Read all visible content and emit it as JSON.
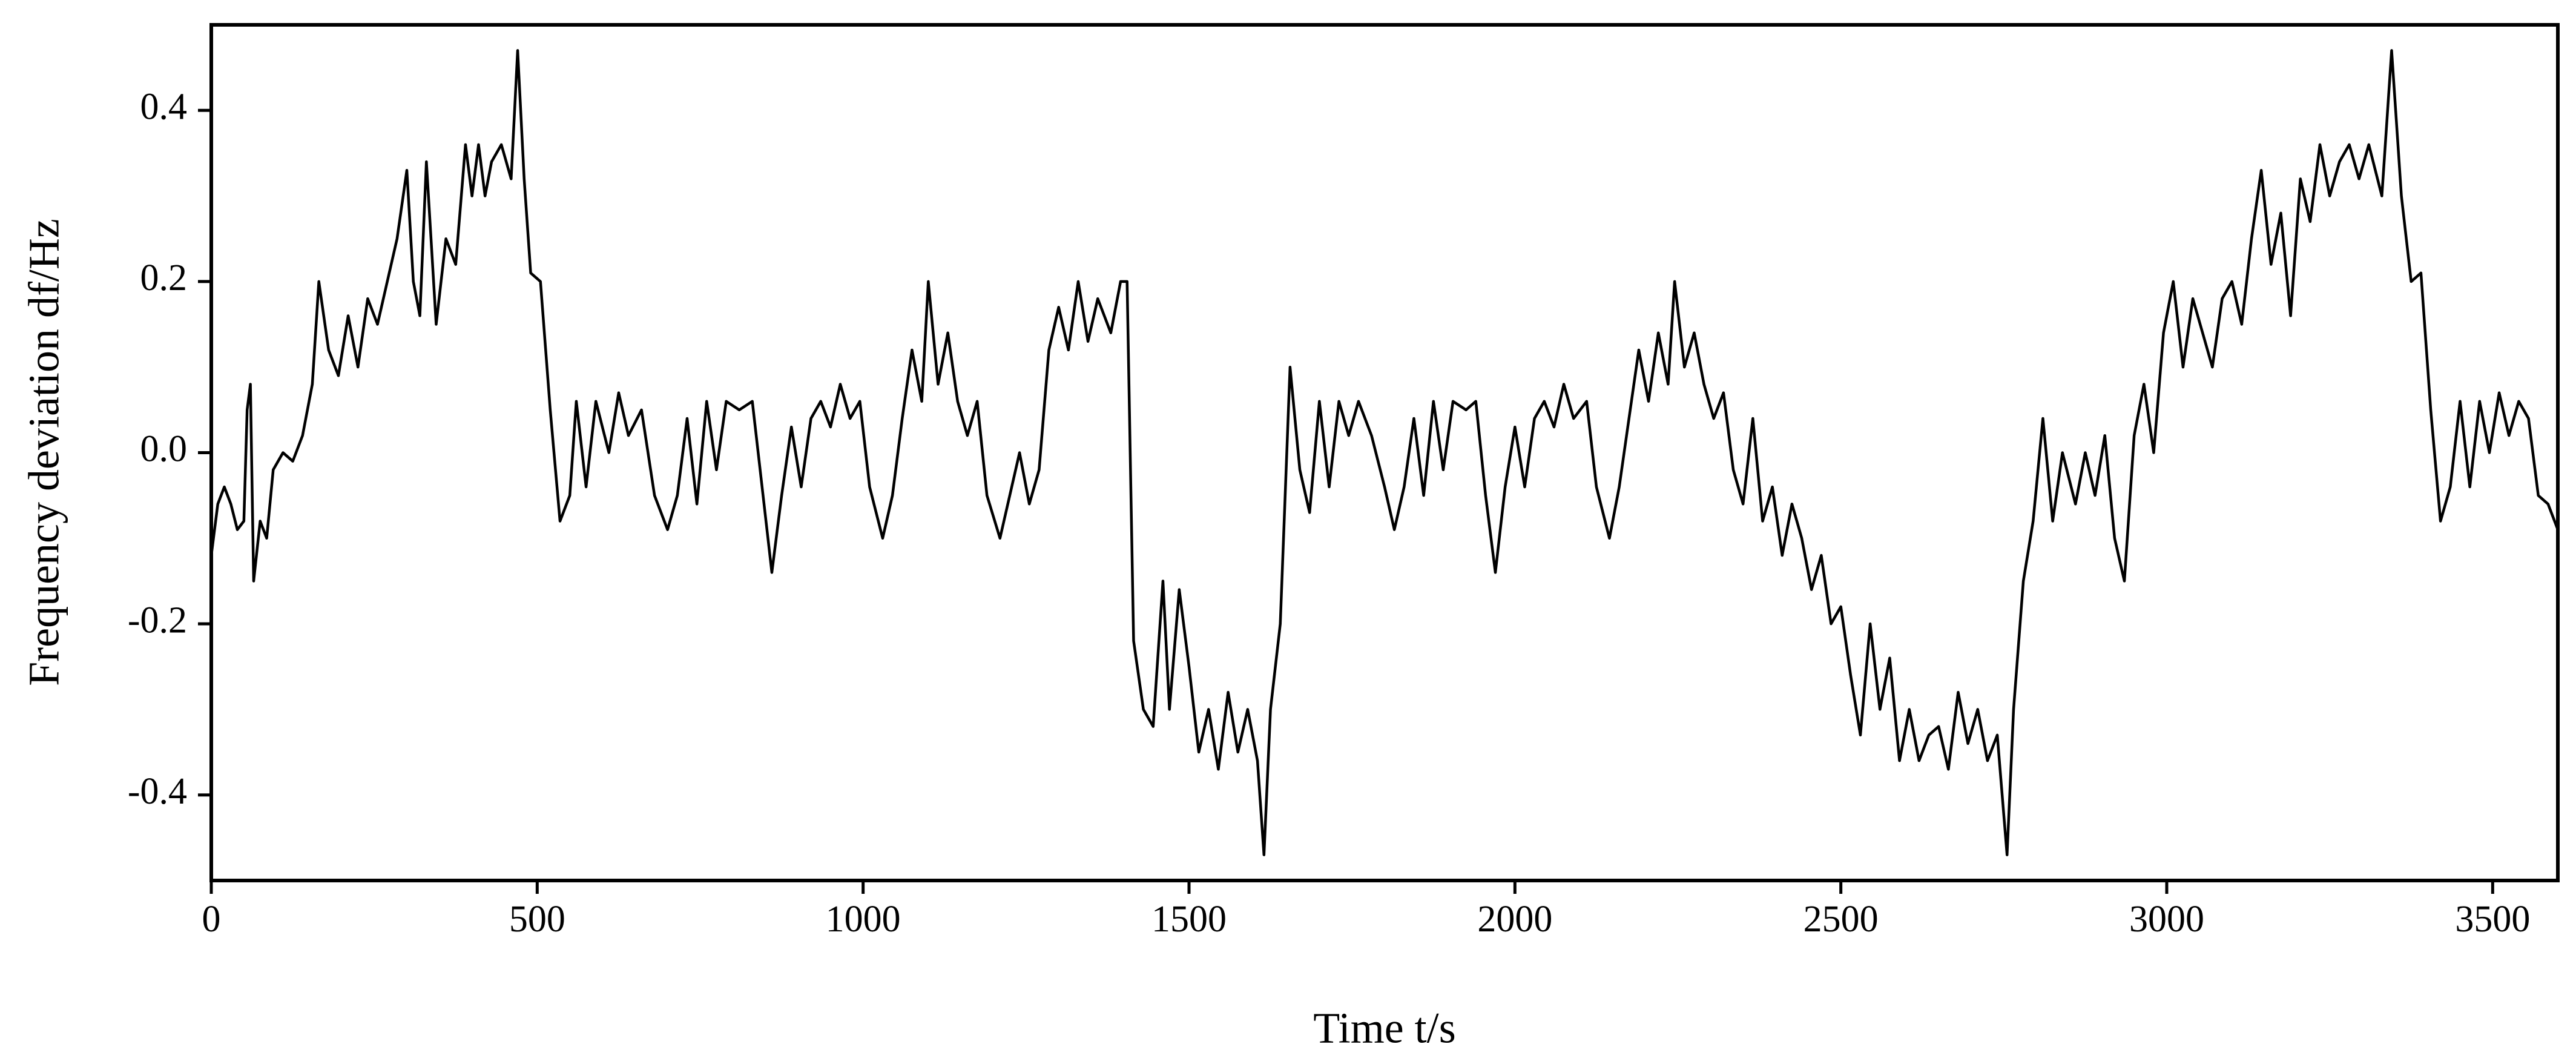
{
  "chart_data": {
    "type": "line",
    "xlabel": "Time t/s",
    "ylabel": "Frequency deviation df/Hz",
    "xlim": [
      0,
      3600
    ],
    "ylim": [
      -0.5,
      0.5
    ],
    "xticks": [
      0,
      500,
      1000,
      1500,
      2000,
      2500,
      3000,
      3500
    ],
    "yticks": [
      -0.4,
      -0.2,
      {
        "value": 0,
        "label": "0.0"
      },
      0.2,
      0.4
    ],
    "grid": false,
    "x": [
      0,
      10,
      20,
      30,
      40,
      50,
      55,
      60,
      65,
      75,
      85,
      95,
      110,
      125,
      140,
      155,
      165,
      180,
      195,
      210,
      225,
      240,
      255,
      270,
      285,
      300,
      310,
      320,
      330,
      345,
      360,
      375,
      390,
      400,
      410,
      420,
      430,
      445,
      460,
      470,
      480,
      490,
      505,
      520,
      535,
      550,
      560,
      575,
      590,
      610,
      625,
      640,
      660,
      680,
      700,
      715,
      730,
      745,
      760,
      775,
      790,
      810,
      830,
      845,
      860,
      875,
      890,
      905,
      920,
      935,
      950,
      965,
      980,
      995,
      1010,
      1030,
      1045,
      1060,
      1075,
      1090,
      1100,
      1115,
      1130,
      1145,
      1160,
      1175,
      1190,
      1210,
      1225,
      1240,
      1255,
      1270,
      1285,
      1300,
      1315,
      1330,
      1345,
      1360,
      1380,
      1395,
      1405,
      1415,
      1430,
      1445,
      1460,
      1470,
      1485,
      1500,
      1515,
      1530,
      1545,
      1560,
      1575,
      1590,
      1605,
      1615,
      1625,
      1640,
      1655,
      1670,
      1685,
      1700,
      1715,
      1730,
      1745,
      1760,
      1780,
      1800,
      1815,
      1830,
      1845,
      1860,
      1875,
      1890,
      1905,
      1925,
      1940,
      1955,
      1970,
      1985,
      2000,
      2015,
      2030,
      2045,
      2060,
      2075,
      2090,
      2110,
      2125,
      2145,
      2160,
      2175,
      2190,
      2205,
      2220,
      2235,
      2245,
      2260,
      2275,
      2290,
      2305,
      2320,
      2335,
      2350,
      2365,
      2380,
      2395,
      2410,
      2425,
      2440,
      2455,
      2470,
      2485,
      2500,
      2515,
      2530,
      2545,
      2560,
      2575,
      2590,
      2605,
      2620,
      2635,
      2650,
      2665,
      2680,
      2695,
      2710,
      2725,
      2740,
      2755,
      2765,
      2780,
      2795,
      2810,
      2825,
      2840,
      2860,
      2875,
      2890,
      2905,
      2920,
      2935,
      2950,
      2965,
      2980,
      2995,
      3010,
      3025,
      3040,
      3055,
      3070,
      3085,
      3100,
      3115,
      3130,
      3145,
      3160,
      3175,
      3190,
      3205,
      3220,
      3235,
      3250,
      3265,
      3280,
      3295,
      3310,
      3330,
      3345,
      3360,
      3375,
      3390,
      3405,
      3420,
      3435,
      3450,
      3465,
      3480,
      3495,
      3510,
      3525,
      3540,
      3555,
      3570,
      3585,
      3600
    ],
    "series": [
      {
        "color": "#000000",
        "values": [
          -0.12,
          -0.06,
          -0.04,
          -0.06,
          -0.09,
          -0.08,
          0.05,
          0.08,
          -0.15,
          -0.08,
          -0.1,
          -0.02,
          0.0,
          -0.01,
          0.02,
          0.08,
          0.2,
          0.12,
          0.09,
          0.16,
          0.1,
          0.18,
          0.15,
          0.2,
          0.25,
          0.33,
          0.2,
          0.16,
          0.34,
          0.15,
          0.25,
          0.22,
          0.36,
          0.3,
          0.36,
          0.3,
          0.34,
          0.36,
          0.32,
          0.47,
          0.32,
          0.21,
          0.2,
          0.05,
          -0.08,
          -0.05,
          0.06,
          -0.04,
          0.06,
          0.0,
          0.07,
          0.02,
          0.05,
          -0.05,
          -0.09,
          -0.05,
          0.04,
          -0.06,
          0.06,
          -0.02,
          0.06,
          0.05,
          0.06,
          -0.04,
          -0.14,
          -0.05,
          0.03,
          -0.04,
          0.04,
          0.06,
          0.03,
          0.08,
          0.04,
          0.06,
          -0.04,
          -0.1,
          -0.05,
          0.04,
          0.12,
          0.06,
          0.2,
          0.08,
          0.14,
          0.06,
          0.02,
          0.06,
          -0.05,
          -0.1,
          -0.05,
          0.0,
          -0.06,
          -0.02,
          0.12,
          0.17,
          0.12,
          0.2,
          0.13,
          0.18,
          0.14,
          0.2,
          0.2,
          -0.22,
          -0.3,
          -0.32,
          -0.15,
          -0.3,
          -0.16,
          -0.25,
          -0.35,
          -0.3,
          -0.37,
          -0.28,
          -0.35,
          -0.3,
          -0.36,
          -0.47,
          -0.3,
          -0.2,
          0.1,
          -0.02,
          -0.07,
          0.06,
          -0.04,
          0.06,
          0.02,
          0.06,
          0.02,
          -0.04,
          -0.09,
          -0.04,
          0.04,
          -0.05,
          0.06,
          -0.02,
          0.06,
          0.05,
          0.06,
          -0.05,
          -0.14,
          -0.04,
          0.03,
          -0.04,
          0.04,
          0.06,
          0.03,
          0.08,
          0.04,
          0.06,
          -0.04,
          -0.1,
          -0.04,
          0.04,
          0.12,
          0.06,
          0.14,
          0.08,
          0.2,
          0.1,
          0.14,
          0.08,
          0.04,
          0.07,
          -0.02,
          -0.06,
          0.04,
          -0.08,
          -0.04,
          -0.12,
          -0.06,
          -0.1,
          -0.16,
          -0.12,
          -0.2,
          -0.18,
          -0.26,
          -0.33,
          -0.2,
          -0.3,
          -0.24,
          -0.36,
          -0.3,
          -0.36,
          -0.33,
          -0.32,
          -0.37,
          -0.28,
          -0.34,
          -0.3,
          -0.36,
          -0.33,
          -0.47,
          -0.3,
          -0.15,
          -0.08,
          0.04,
          -0.08,
          0.0,
          -0.06,
          0.0,
          -0.05,
          0.02,
          -0.1,
          -0.15,
          0.02,
          0.08,
          0.0,
          0.14,
          0.2,
          0.1,
          0.18,
          0.14,
          0.1,
          0.18,
          0.2,
          0.15,
          0.25,
          0.33,
          0.22,
          0.28,
          0.16,
          0.32,
          0.27,
          0.36,
          0.3,
          0.34,
          0.36,
          0.32,
          0.36,
          0.3,
          0.47,
          0.3,
          0.2,
          0.21,
          0.05,
          -0.08,
          -0.04,
          0.06,
          -0.04,
          0.06,
          0.0,
          0.07,
          0.02,
          0.06,
          0.04,
          -0.05,
          -0.06,
          -0.09
        ]
      }
    ]
  }
}
